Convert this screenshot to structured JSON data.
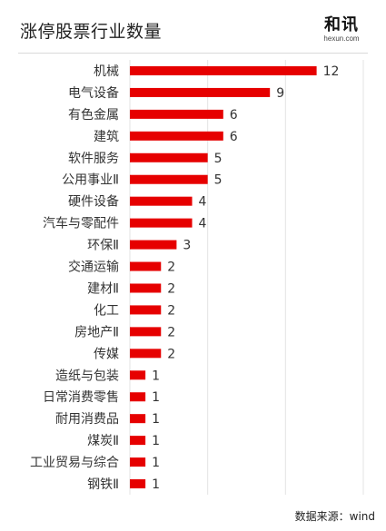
{
  "header": {
    "title": "涨停股票行业数量",
    "logo_main": "和讯",
    "logo_sub": "hexun.com"
  },
  "footer": {
    "source": "数据来源：wind"
  },
  "colors": {
    "bar": "#e60000",
    "grid": "#e3e3e3",
    "label": "#333333"
  },
  "chart_data": {
    "type": "bar",
    "orientation": "horizontal",
    "title": "涨停股票行业数量",
    "categories": [
      "机械",
      "电气设备",
      "有色金属",
      "建筑",
      "软件服务",
      "公用事业Ⅱ",
      "硬件设备",
      "汽车与零配件",
      "环保Ⅱ",
      "交通运输",
      "建材Ⅱ",
      "化工",
      "房地产Ⅱ",
      "传媒",
      "造纸与包装",
      "日常消费零售",
      "耐用消费品",
      "煤炭Ⅱ",
      "工业贸易与综合",
      "钢铁Ⅱ"
    ],
    "values": [
      12,
      9,
      6,
      6,
      5,
      5,
      4,
      4,
      3,
      2,
      2,
      2,
      2,
      2,
      1,
      1,
      1,
      1,
      1,
      1
    ],
    "xlim": [
      0,
      15
    ],
    "grid": true,
    "data_labels": true
  }
}
